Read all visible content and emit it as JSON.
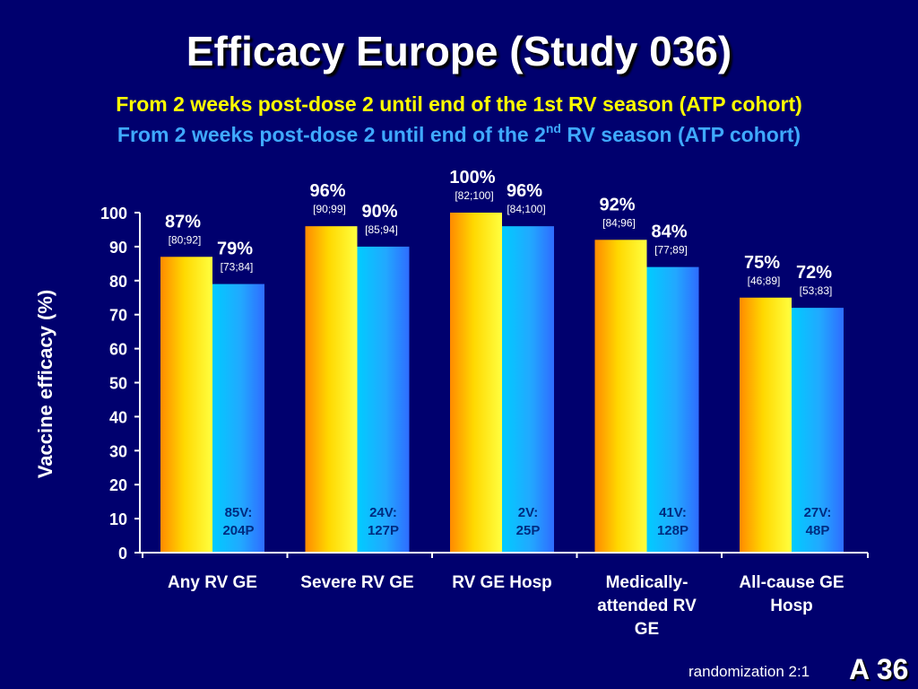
{
  "slide": {
    "title": "Efficacy Europe (Study 036)",
    "subtitle_1": "From 2 weeks post-dose 2 until end of the 1st RV season (ATP cohort)",
    "subtitle_2_pre": "From 2 weeks post-dose 2 until end of the 2",
    "subtitle_2_sup": "nd",
    "subtitle_2_post": " RV season (ATP cohort)",
    "footer": "randomization 2:1",
    "slide_number": "A 36"
  },
  "chart_data": {
    "type": "bar",
    "ylabel": "Vaccine efficacy (%)",
    "ylim": [
      0,
      100
    ],
    "yticks": [
      0,
      10,
      20,
      30,
      40,
      50,
      60,
      70,
      80,
      90,
      100
    ],
    "categories": [
      [
        "Any RV GE"
      ],
      [
        "Severe RV GE"
      ],
      [
        "RV GE Hosp"
      ],
      [
        "Medically-",
        "attended RV",
        "GE"
      ],
      [
        "All-cause GE",
        "Hosp"
      ]
    ],
    "series": [
      {
        "color": "#ffcc00",
        "values": [
          87,
          96,
          100,
          92,
          75
        ],
        "labels": [
          "87%",
          "96%",
          "100%",
          "92%",
          "75%"
        ],
        "ci": [
          "[80;92]",
          "[90;99]",
          "[82;100]",
          "[84;96]",
          "[46;89]"
        ]
      },
      {
        "color": "#33aaff",
        "values": [
          79,
          90,
          96,
          84,
          72
        ],
        "labels": [
          "79%",
          "90%",
          "96%",
          "84%",
          "72%"
        ],
        "ci": [
          "[73;84]",
          "[85;94]",
          "[84;100]",
          "[77;89]",
          "[53;83]"
        ],
        "counts": [
          [
            "85V:",
            "204P"
          ],
          [
            "24V:",
            "127P"
          ],
          [
            "2V:",
            "25P"
          ],
          [
            "41V:",
            "128P"
          ],
          [
            "27V:",
            "48P"
          ]
        ]
      }
    ],
    "grid": false,
    "legend": "none"
  }
}
